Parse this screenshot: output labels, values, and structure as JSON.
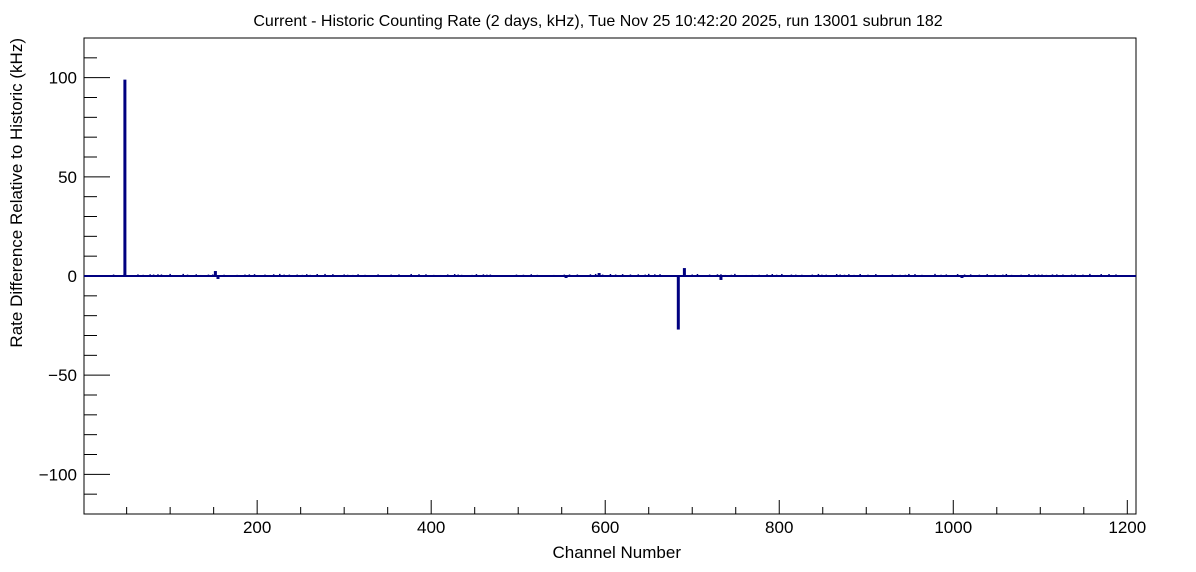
{
  "chart_data": {
    "type": "bar",
    "title": "Current - Historic Counting Rate (2 days, kHz), Tue Nov 25 10:42:20 2025, run 13001 subrun 182",
    "xlabel": "Channel Number",
    "ylabel": "Rate Difference Relative to Historic (kHz)",
    "xlim": [
      1,
      1210
    ],
    "ylim": [
      -120,
      120
    ],
    "x_ticks": [
      200,
      400,
      600,
      800,
      1000,
      1200
    ],
    "y_ticks": [
      -100,
      -50,
      0,
      50,
      100
    ],
    "grid": false,
    "series_color": "#000080",
    "spikes": [
      {
        "x": 48,
        "y": 99
      },
      {
        "x": 684,
        "y": -27
      },
      {
        "x": 691,
        "y": 4
      },
      {
        "x": 152,
        "y": 2.5
      },
      {
        "x": 155,
        "y": -1.5
      },
      {
        "x": 733,
        "y": -2
      },
      {
        "x": 593,
        "y": 1.5
      },
      {
        "x": 555,
        "y": -1
      },
      {
        "x": 1010,
        "y": -1
      }
    ],
    "small_fluctuation_ranges": [
      [
        35,
        120
      ],
      [
        130,
        290
      ],
      [
        300,
        470
      ],
      [
        490,
        670
      ],
      [
        700,
        1200
      ]
    ]
  }
}
